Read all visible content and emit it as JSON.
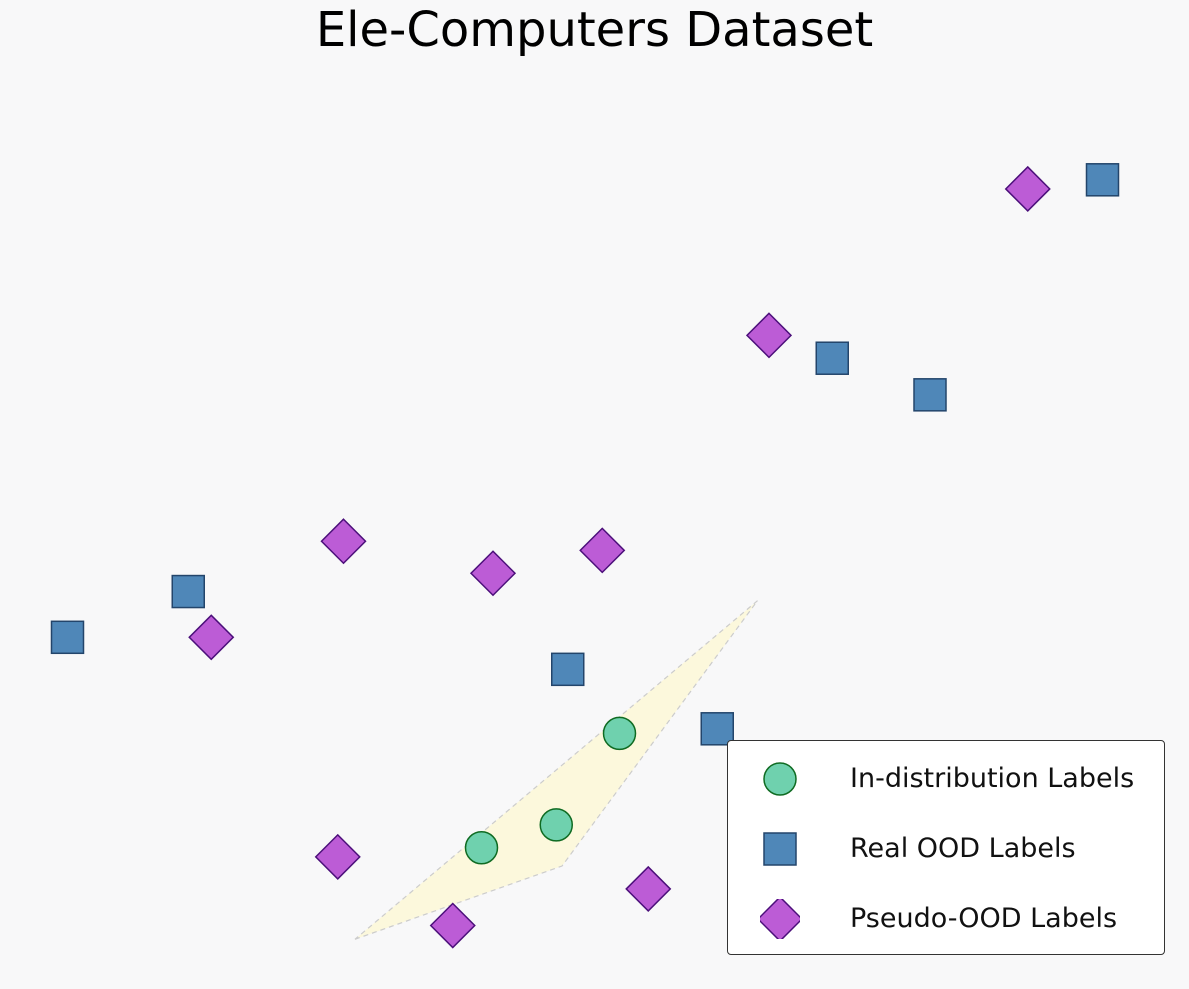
{
  "chart_data": {
    "type": "scatter",
    "title": "Ele-Computers Dataset",
    "xlabel": "",
    "ylabel": "",
    "axes_visible": false,
    "grid": false,
    "xlim": [
      0,
      100
    ],
    "ylim": [
      0,
      100
    ],
    "legend_position": "bottom-right",
    "region": {
      "description": "in-distribution region",
      "fill": "#fcf8dc",
      "polygon": [
        [
          30,
          5
        ],
        [
          48,
          13
        ],
        [
          65,
          42
        ]
      ]
    },
    "series": [
      {
        "name": "In-distribution Labels",
        "marker": "circle",
        "color": "#6fd1ae",
        "edge_color": "#0f6b22",
        "points": [
          [
            41,
            15
          ],
          [
            47.5,
            17.5
          ],
          [
            53,
            27.5
          ]
        ]
      },
      {
        "name": "Real OOD Labels",
        "marker": "square",
        "color": "#4f87b8",
        "edge_color": "#23456b",
        "points": [
          [
            5,
            38
          ],
          [
            15.5,
            43
          ],
          [
            48.5,
            34.5
          ],
          [
            61.5,
            28
          ],
          [
            71.5,
            68.5
          ],
          [
            80,
            64.5
          ],
          [
            95,
            88
          ]
        ]
      },
      {
        "name": "Pseudo-OOD Labels",
        "marker": "diamond",
        "color": "#bc5cd6",
        "edge_color": "#4b0f7a",
        "points": [
          [
            17.5,
            38
          ],
          [
            29,
            48.5
          ],
          [
            28.5,
            14
          ],
          [
            42,
            45
          ],
          [
            51.5,
            47.5
          ],
          [
            38.5,
            6.5
          ],
          [
            55.5,
            10.5
          ],
          [
            66,
            71
          ],
          [
            88.5,
            87
          ]
        ]
      }
    ]
  }
}
